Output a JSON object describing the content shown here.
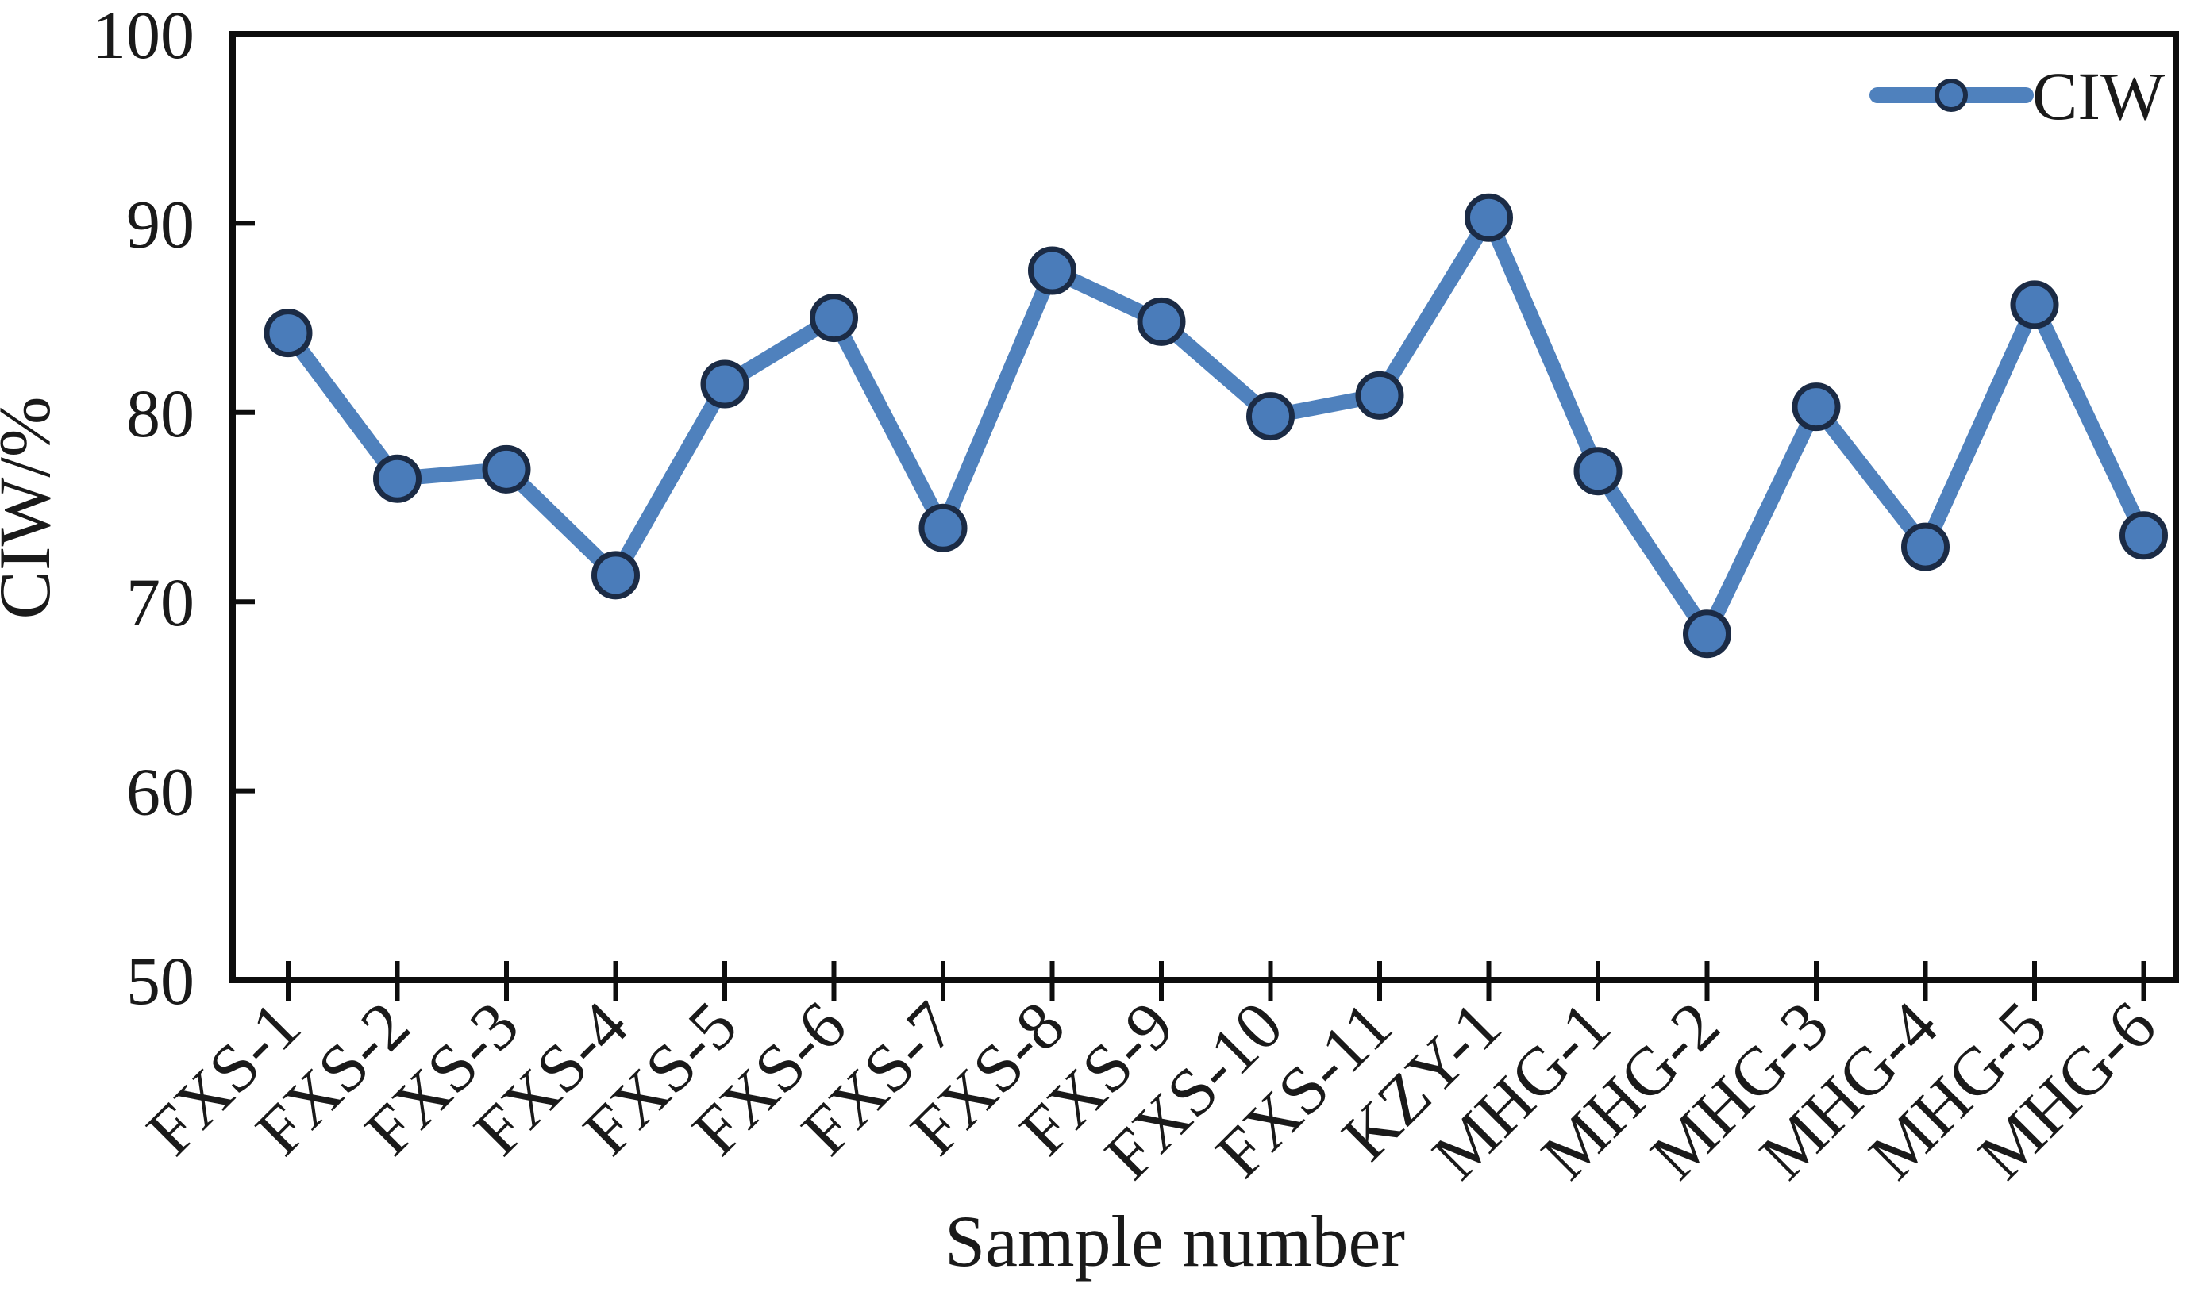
{
  "chart_data": {
    "type": "line",
    "title": "",
    "categories": [
      "FXS-1",
      "FXS-2",
      "FXS-3",
      "FXS-4",
      "FXS-5",
      "FXS-6",
      "FXS-7",
      "FXS-8",
      "FXS-9",
      "FXS-10",
      "FXS-11",
      "KZY-1",
      "MHG-1",
      "MHG-2",
      "MHG-3",
      "MHG-4",
      "MHG-5",
      "MHG-6"
    ],
    "series": [
      {
        "name": "CIW",
        "values": [
          84.2,
          76.5,
          77.0,
          71.4,
          81.5,
          85.0,
          73.9,
          87.5,
          84.8,
          79.8,
          80.9,
          90.3,
          76.9,
          68.3,
          80.3,
          72.9,
          85.7,
          73.5
        ]
      }
    ],
    "xlabel": "Sample number",
    "ylabel": "CIW/%",
    "ylim": [
      50,
      100
    ],
    "ytick_step": 10,
    "ytick_labels": [
      "50",
      "60",
      "70",
      "80",
      "90",
      "100"
    ],
    "grid": false,
    "legend_position": "top-right",
    "legend_entries": [
      "CIW"
    ],
    "x_label_rotation_deg": -45
  },
  "colors": {
    "line": "#4f81bd",
    "marker_fill": "#4a7cba",
    "marker_edge": "#1b2b45",
    "frame": "#0d0d0d",
    "text": "#1a1a1a",
    "background": "#ffffff"
  },
  "legend": {
    "label": "CIW",
    "marker_icon": "circle-on-line"
  }
}
